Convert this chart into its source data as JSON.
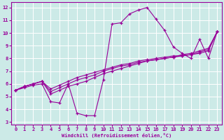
{
  "background_color": "#cceae7",
  "grid_color": "#ffffff",
  "line_color": "#990099",
  "marker": "+",
  "xlabel": "Windchill (Refroidissement éolien,°C)",
  "xlim": [
    -0.5,
    23.5
  ],
  "ylim": [
    2.8,
    12.4
  ],
  "xticks": [
    0,
    1,
    2,
    3,
    4,
    5,
    6,
    7,
    8,
    9,
    10,
    11,
    12,
    13,
    14,
    15,
    16,
    17,
    18,
    19,
    20,
    21,
    22,
    23
  ],
  "yticks": [
    3,
    4,
    5,
    6,
    7,
    8,
    9,
    10,
    11,
    12
  ],
  "series1_x": [
    0,
    1,
    2,
    3,
    4,
    5,
    6,
    7,
    8,
    9,
    10,
    11,
    12,
    13,
    14,
    15,
    16,
    17,
    18,
    19,
    20,
    21,
    22,
    23
  ],
  "series1_y": [
    5.5,
    5.7,
    5.9,
    6.0,
    4.6,
    4.5,
    6.0,
    3.7,
    3.5,
    3.5,
    6.3,
    10.7,
    10.8,
    11.5,
    11.8,
    12.0,
    11.1,
    10.2,
    8.9,
    8.4,
    8.0,
    9.5,
    8.0,
    10.1
  ],
  "series2_x": [
    0,
    1,
    2,
    3,
    4,
    5,
    6,
    7,
    8,
    9,
    10,
    11,
    12,
    13,
    14,
    15,
    16,
    17,
    18,
    19,
    20,
    21,
    22,
    23
  ],
  "series2_y": [
    5.5,
    5.8,
    6.0,
    6.2,
    5.2,
    5.5,
    5.8,
    6.0,
    6.2,
    6.5,
    6.8,
    7.0,
    7.2,
    7.4,
    7.6,
    7.8,
    7.9,
    8.0,
    8.1,
    8.3,
    8.4,
    8.6,
    8.8,
    10.1
  ],
  "series3_x": [
    0,
    1,
    2,
    3,
    4,
    5,
    6,
    7,
    8,
    9,
    10,
    11,
    12,
    13,
    14,
    15,
    16,
    17,
    18,
    19,
    20,
    21,
    22,
    23
  ],
  "series3_y": [
    5.5,
    5.8,
    6.0,
    6.2,
    5.4,
    5.7,
    6.0,
    6.3,
    6.5,
    6.7,
    7.0,
    7.2,
    7.4,
    7.5,
    7.7,
    7.8,
    7.9,
    8.0,
    8.1,
    8.2,
    8.3,
    8.5,
    8.7,
    10.1
  ],
  "series4_x": [
    0,
    1,
    2,
    3,
    4,
    5,
    6,
    7,
    8,
    9,
    10,
    11,
    12,
    13,
    14,
    15,
    16,
    17,
    18,
    19,
    20,
    21,
    22,
    23
  ],
  "series4_y": [
    5.5,
    5.8,
    6.0,
    6.2,
    5.6,
    5.9,
    6.2,
    6.5,
    6.7,
    6.9,
    7.1,
    7.3,
    7.5,
    7.6,
    7.8,
    7.9,
    8.0,
    8.1,
    8.2,
    8.2,
    8.3,
    8.4,
    8.6,
    10.1
  ]
}
